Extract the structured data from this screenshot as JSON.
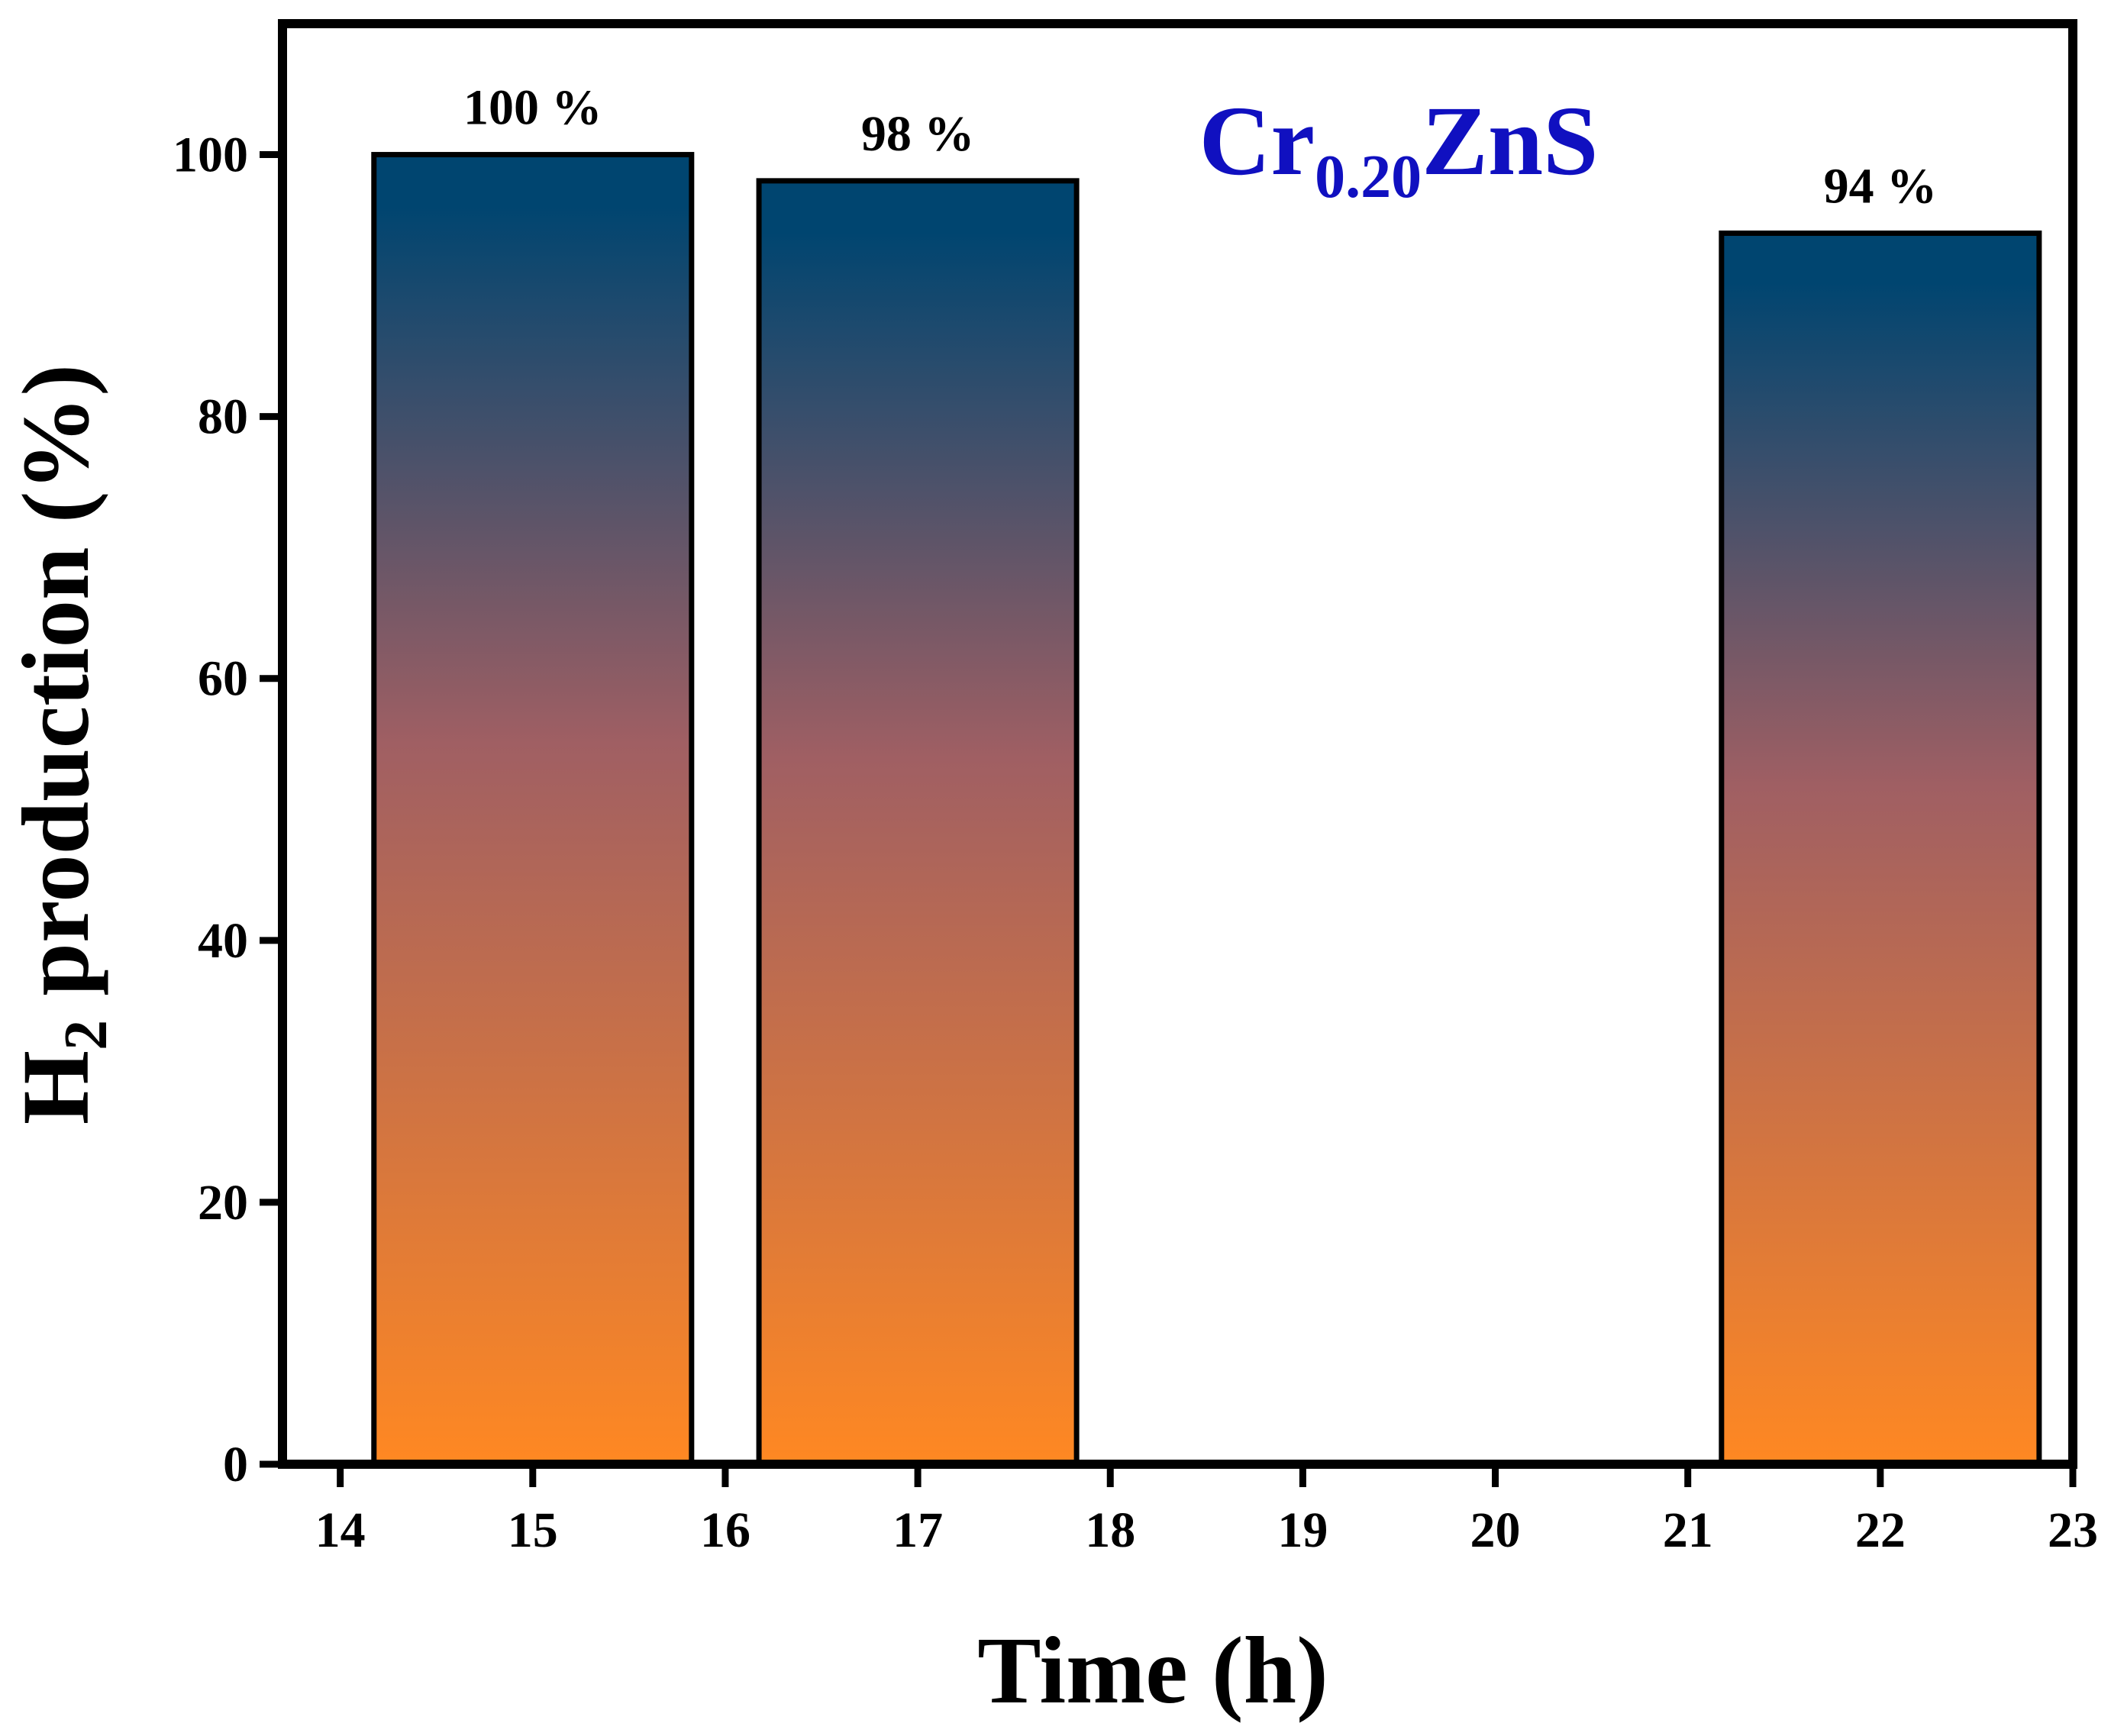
{
  "chart_data": {
    "type": "bar",
    "title": "",
    "xlabel": "Time (h)",
    "ylabel": {
      "main": "H",
      "subscript": "2",
      "suffix": " production (%)"
    },
    "xlim": [
      13.7,
      23
    ],
    "ylim": [
      0,
      110
    ],
    "xticks": [
      14,
      15,
      16,
      17,
      18,
      19,
      20,
      21,
      22,
      23
    ],
    "yticks": [
      0,
      20,
      40,
      60,
      80,
      100
    ],
    "bar_width": 1.65,
    "bars": [
      {
        "x": 15,
        "value": 100,
        "label": "100 %"
      },
      {
        "x": 17,
        "value": 98,
        "label": "98 %"
      },
      {
        "x": 22,
        "value": 94,
        "label": "94 %"
      }
    ],
    "annotation": {
      "main": "Cr",
      "subscript": "0.20",
      "suffix": "ZnS",
      "color": "#1010c0"
    },
    "gradient": {
      "top": "#004570",
      "mid": "#a05f63",
      "bottom": "#ff8822"
    },
    "grid": false,
    "legend": "none"
  }
}
